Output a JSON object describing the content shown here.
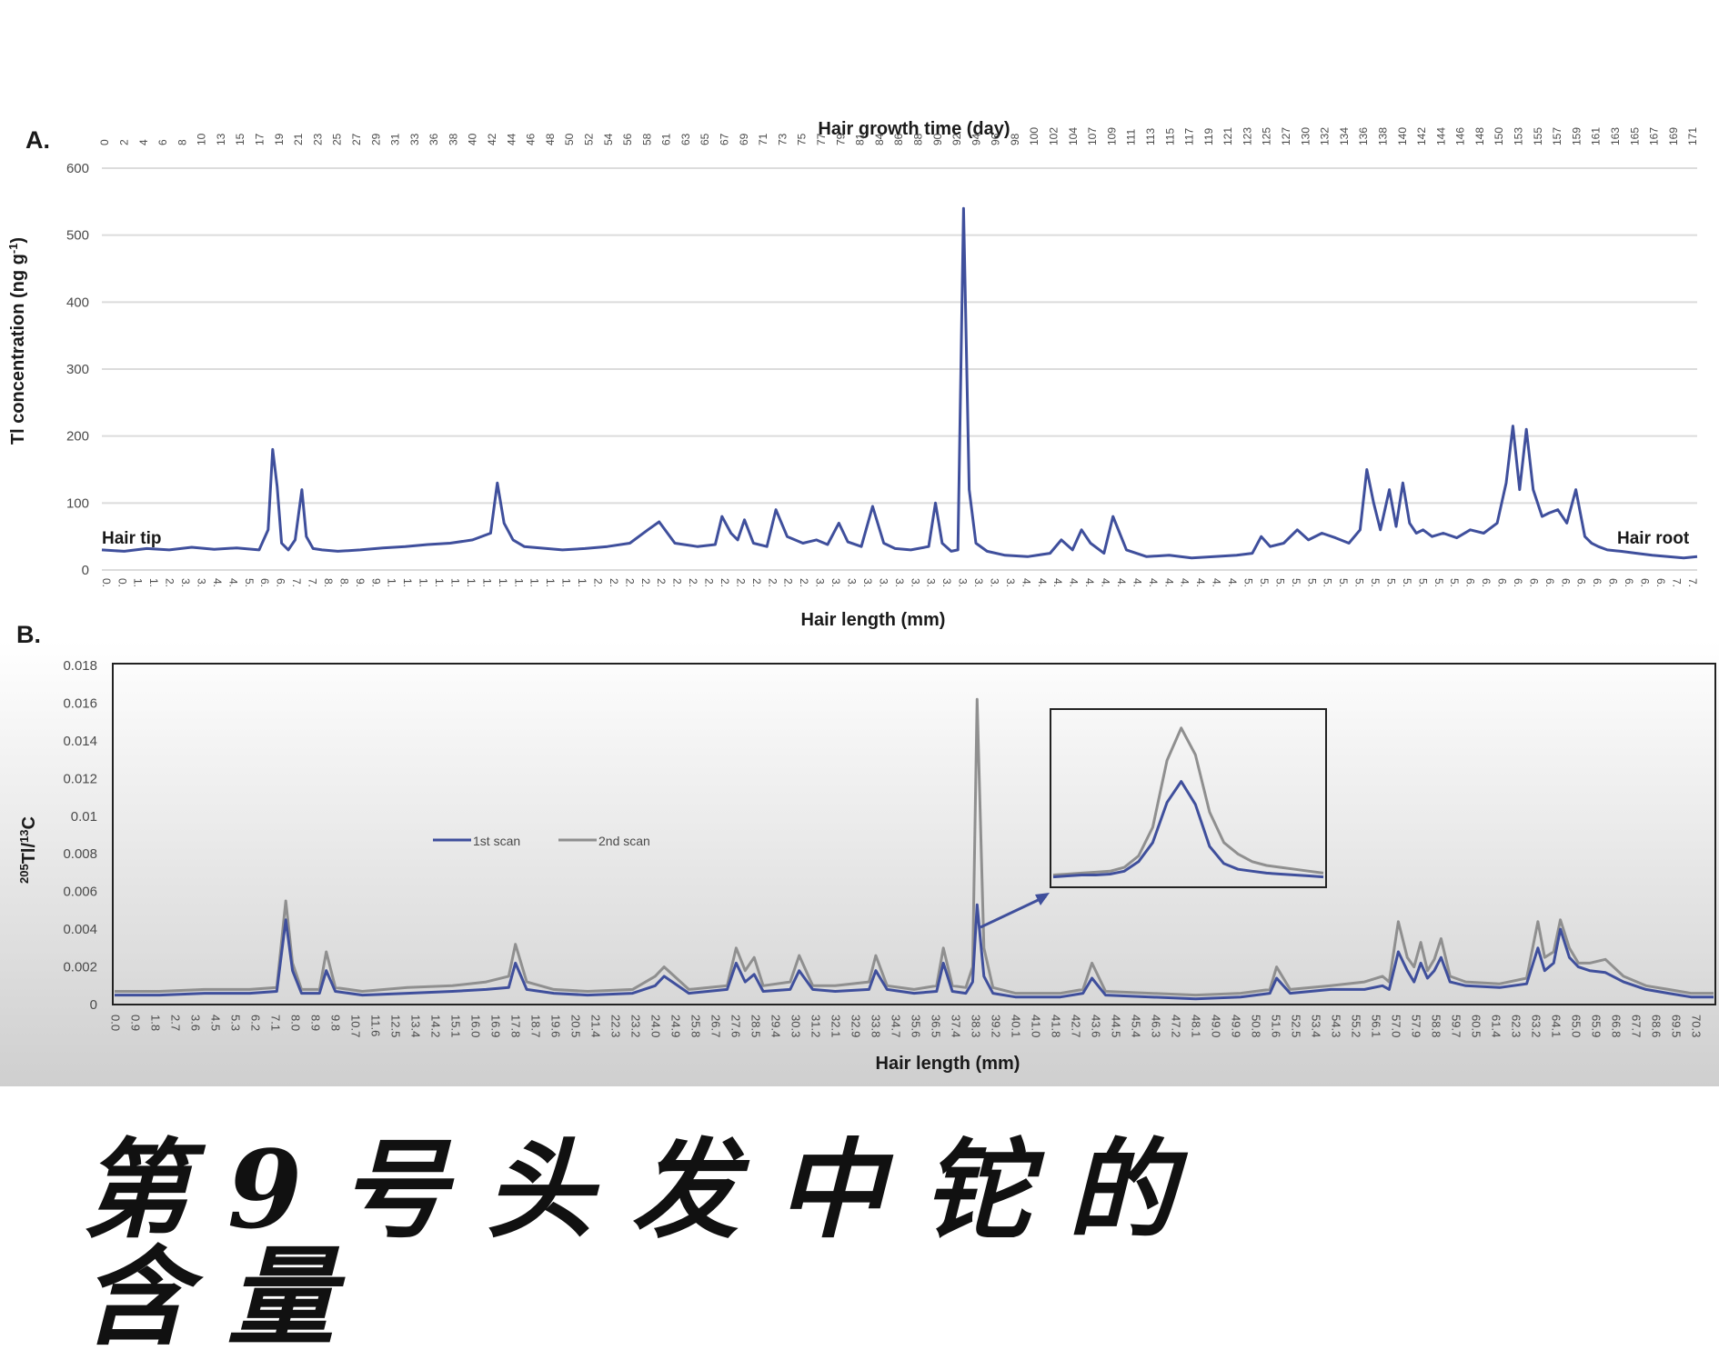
{
  "caption": "第9号头发中铊的含量",
  "panel_a": {
    "label": "A.",
    "top_axis_title": "Hair growth time (day)",
    "ylabel": "Tl concentration (ng g",
    "ylabel_sup": "-1",
    "ylabel_end": ")",
    "xlabel": "Hair length (mm)",
    "left_annotation": "Hair tip",
    "right_annotation": "Hair root"
  },
  "panel_b": {
    "label": "B.",
    "ylabel_sup1": "205",
    "ylabel_mid": "Tl/",
    "ylabel_sup2": "13",
    "ylabel_end": "C",
    "xlabel": "Hair length (mm)",
    "legend": [
      "1st scan",
      "2nd scan"
    ]
  },
  "colors": {
    "series_a": "#3f4f9c",
    "scan1": "#3f4f9c",
    "scan2": "#8f8f8f",
    "grid": "#dcdcdc",
    "panel_b_top": "#ffffff",
    "panel_b_bottom": "#cfcfcf"
  },
  "chart_data": [
    {
      "type": "line",
      "panel": "A",
      "title": "",
      "ylabel": "Tl concentration (ng g-1)",
      "xlabel": "Hair length (mm)",
      "x2label": "Hair growth time (day)",
      "ylim": [
        0,
        600
      ],
      "yticks": [
        0,
        100,
        200,
        300,
        400,
        500,
        600
      ],
      "grid": true,
      "top_ticks": [
        "0",
        "2",
        "4",
        "6",
        "8",
        "10",
        "13",
        "15",
        "17",
        "19",
        "21",
        "23",
        "25",
        "27",
        "29",
        "31",
        "33",
        "36",
        "38",
        "40",
        "42",
        "44",
        "46",
        "48",
        "50",
        "52",
        "54",
        "56",
        "58",
        "61",
        "63",
        "65",
        "67",
        "69",
        "71",
        "73",
        "75",
        "77",
        "79",
        "81",
        "84",
        "86",
        "88",
        "90",
        "92",
        "94",
        "96",
        "98",
        "100",
        "102",
        "104",
        "107",
        "109",
        "111",
        "113",
        "115",
        "117",
        "119",
        "121",
        "123",
        "125",
        "127",
        "130",
        "132",
        "134",
        "136",
        "138",
        "140",
        "142",
        "144",
        "146",
        "148",
        "150",
        "153",
        "155",
        "157",
        "159",
        "161",
        "163",
        "165",
        "167",
        "169",
        "171"
      ],
      "bottom_ticks": [
        "0",
        "0",
        "1",
        "1",
        "2",
        "3",
        "3",
        "4",
        "4",
        "5",
        "6",
        "6",
        "7",
        "7",
        "8",
        "8",
        "9",
        "9",
        "1",
        "1",
        "1",
        "1",
        "1",
        "1",
        "1",
        "1",
        "1",
        "1",
        "1",
        "1",
        "1",
        "2",
        "2",
        "2",
        "2",
        "2",
        "2",
        "2",
        "2",
        "2",
        "2",
        "2",
        "2",
        "2",
        "2",
        "3",
        "3",
        "3",
        "3",
        "3",
        "3",
        "3",
        "3",
        "3",
        "3",
        "3",
        "3",
        "3",
        "4",
        "4",
        "4",
        "4",
        "4",
        "4",
        "4",
        "4",
        "4",
        "4",
        "4",
        "4",
        "4",
        "4",
        "5",
        "5",
        "5",
        "5",
        "5",
        "5",
        "5",
        "5",
        "5",
        "5",
        "5",
        "5",
        "5",
        "5",
        "6",
        "6",
        "6",
        "6",
        "6",
        "6",
        "6",
        "6",
        "6",
        "6",
        "6",
        "6",
        "6",
        "7",
        "7"
      ],
      "series": [
        {
          "x": [
            0,
            1,
            2,
            3,
            4,
            5,
            6,
            7,
            7.4,
            7.6,
            7.8,
            8.0,
            8.3,
            8.6,
            8.9,
            9.1,
            9.4,
            9.8,
            10.5,
            11.5,
            12.5,
            13.5,
            14.5,
            15.5,
            16.5,
            17.3,
            17.6,
            17.9,
            18.3,
            18.8,
            19.5,
            20.5,
            21.5,
            22.5,
            23.5,
            24.3,
            24.8,
            25.5,
            26.5,
            27.3,
            27.6,
            28.0,
            28.3,
            28.6,
            29.0,
            29.6,
            30.0,
            30.5,
            31.2,
            31.8,
            32.3,
            32.8,
            33.2,
            33.8,
            34.3,
            34.8,
            35.3,
            36.0,
            36.8,
            37.1,
            37.4,
            37.8,
            38.1,
            38.35,
            38.6,
            38.9,
            39.4,
            40.2,
            41.2,
            42.2,
            42.7,
            43.2,
            43.6,
            44.0,
            44.6,
            45.0,
            45.6,
            46.5,
            47.5,
            48.5,
            49.5,
            50.5,
            51.2,
            51.6,
            52.0,
            52.6,
            53.2,
            53.7,
            54.3,
            54.9,
            55.5,
            56.0,
            56.3,
            56.6,
            56.9,
            57.3,
            57.6,
            57.9,
            58.2,
            58.5,
            58.8,
            59.2,
            59.7,
            60.3,
            60.9,
            61.5,
            62.1,
            62.5,
            62.8,
            63.1,
            63.4,
            63.7,
            64.1,
            64.4,
            64.8,
            65.2,
            65.6,
            66.0,
            66.3,
            66.6,
            67.0,
            67.6,
            68.3,
            69.0,
            69.7,
            70.4,
            71.0
          ],
          "values": [
            30,
            28,
            32,
            30,
            34,
            31,
            33,
            30,
            60,
            180,
            125,
            40,
            30,
            45,
            120,
            50,
            32,
            30,
            28,
            30,
            33,
            35,
            38,
            40,
            45,
            55,
            130,
            70,
            45,
            35,
            33,
            30,
            32,
            35,
            40,
            60,
            72,
            40,
            35,
            38,
            80,
            55,
            45,
            75,
            40,
            35,
            90,
            50,
            40,
            45,
            38,
            70,
            42,
            35,
            95,
            40,
            32,
            30,
            35,
            100,
            40,
            28,
            30,
            540,
            120,
            40,
            28,
            22,
            20,
            25,
            45,
            30,
            60,
            40,
            25,
            80,
            30,
            20,
            22,
            18,
            20,
            22,
            25,
            50,
            35,
            40,
            60,
            45,
            55,
            48,
            40,
            60,
            150,
            100,
            60,
            120,
            65,
            130,
            70,
            55,
            60,
            50,
            55,
            48,
            60,
            55,
            70,
            130,
            215,
            120,
            210,
            120,
            80,
            85,
            90,
            70,
            120,
            50,
            40,
            35,
            30,
            28,
            25,
            22,
            20,
            18,
            20
          ]
        }
      ]
    },
    {
      "type": "line",
      "panel": "B",
      "title": "",
      "ylabel": "205Tl/13C",
      "xlabel": "Hair length (mm)",
      "ylim": [
        0,
        0.018
      ],
      "yticks": [
        0,
        0.002,
        0.004,
        0.006,
        0.008,
        0.01,
        0.012,
        0.014,
        0.016,
        0.018
      ],
      "ytick_labels": [
        "0",
        "0.002",
        "0.004",
        "0.006",
        "0.008",
        "0.01",
        "0.012",
        "0.014",
        "0.016",
        "0.018"
      ],
      "grid": false,
      "legend": "center-left",
      "categories": [
        "0.0",
        "0.9",
        "1.8",
        "2.7",
        "3.6",
        "4.5",
        "5.3",
        "6.2",
        "7.1",
        "8.0",
        "8.9",
        "9.8",
        "10.7",
        "11.6",
        "12.5",
        "13.4",
        "14.2",
        "15.1",
        "16.0",
        "16.9",
        "17.8",
        "18.7",
        "19.6",
        "20.5",
        "21.4",
        "22.3",
        "23.2",
        "24.0",
        "24.9",
        "25.8",
        "26.7",
        "27.6",
        "28.5",
        "29.4",
        "30.3",
        "31.2",
        "32.1",
        "32.9",
        "33.8",
        "34.7",
        "35.6",
        "36.5",
        "37.4",
        "38.3",
        "39.2",
        "40.1",
        "41.0",
        "41.8",
        "42.7",
        "43.6",
        "44.5",
        "45.4",
        "46.3",
        "47.2",
        "48.1",
        "49.0",
        "49.9",
        "50.8",
        "51.6",
        "52.5",
        "53.4",
        "54.3",
        "55.2",
        "56.1",
        "57.0",
        "57.9",
        "58.8",
        "59.7",
        "60.5",
        "61.4",
        "62.3",
        "63.2",
        "64.1",
        "65.0",
        "65.9",
        "66.8",
        "67.7",
        "68.6",
        "69.5",
        "70.3"
      ],
      "series": [
        {
          "name": "1st scan",
          "x": [
            0,
            2,
            4,
            6,
            7.2,
            7.6,
            7.9,
            8.3,
            9.1,
            9.4,
            9.8,
            11,
            13,
            15,
            16.5,
            17.5,
            17.8,
            18.3,
            19.5,
            21,
            23,
            24.0,
            24.4,
            25.5,
            27.2,
            27.6,
            28.0,
            28.4,
            28.8,
            30.0,
            30.4,
            31.0,
            32,
            33.5,
            33.8,
            34.3,
            35.5,
            36.5,
            36.8,
            37.2,
            37.8,
            38.1,
            38.3,
            38.6,
            39.0,
            40,
            42,
            43.0,
            43.4,
            44,
            46,
            48,
            50,
            51.3,
            51.6,
            52.2,
            54,
            55.5,
            56.3,
            56.6,
            57.0,
            57.4,
            57.7,
            58.0,
            58.3,
            58.6,
            58.9,
            59.3,
            60,
            61.5,
            62.7,
            63.2,
            63.5,
            63.9,
            64.2,
            64.6,
            65.0,
            65.5,
            66.2,
            67.0,
            68,
            69,
            70,
            71
          ],
          "values": [
            0.0005,
            0.0005,
            0.0006,
            0.0006,
            0.0007,
            0.0045,
            0.0018,
            0.0006,
            0.0006,
            0.0018,
            0.0007,
            0.0005,
            0.0006,
            0.0007,
            0.0008,
            0.0009,
            0.0022,
            0.0008,
            0.0006,
            0.0005,
            0.0006,
            0.001,
            0.0015,
            0.0006,
            0.0008,
            0.0022,
            0.0012,
            0.0016,
            0.0007,
            0.0008,
            0.0018,
            0.0008,
            0.0007,
            0.0008,
            0.0018,
            0.0008,
            0.0006,
            0.0007,
            0.0022,
            0.0007,
            0.0006,
            0.0012,
            0.0053,
            0.0015,
            0.0006,
            0.0004,
            0.0004,
            0.0006,
            0.0014,
            0.0005,
            0.0004,
            0.0003,
            0.0004,
            0.0006,
            0.0014,
            0.0006,
            0.0008,
            0.0008,
            0.001,
            0.0008,
            0.0028,
            0.0018,
            0.0012,
            0.0022,
            0.0014,
            0.0018,
            0.0025,
            0.0012,
            0.001,
            0.0009,
            0.0011,
            0.003,
            0.0018,
            0.0022,
            0.004,
            0.0025,
            0.002,
            0.0018,
            0.0017,
            0.0012,
            0.0008,
            0.0006,
            0.0004,
            0.0004
          ]
        },
        {
          "name": "2nd scan",
          "x": [
            0,
            2,
            4,
            6,
            7.2,
            7.6,
            7.9,
            8.3,
            9.1,
            9.4,
            9.8,
            11,
            13,
            15,
            16.5,
            17.5,
            17.8,
            18.3,
            19.5,
            21,
            23,
            24.0,
            24.4,
            25.5,
            27.2,
            27.6,
            28.0,
            28.4,
            28.8,
            30.0,
            30.4,
            31.0,
            32,
            33.5,
            33.8,
            34.3,
            35.5,
            36.5,
            36.8,
            37.2,
            37.8,
            38.1,
            38.3,
            38.6,
            39.0,
            40,
            42,
            43.0,
            43.4,
            44,
            46,
            48,
            50,
            51.3,
            51.6,
            52.2,
            54,
            55.5,
            56.3,
            56.6,
            57.0,
            57.4,
            57.7,
            58.0,
            58.3,
            58.6,
            58.9,
            59.3,
            60,
            61.5,
            62.7,
            63.2,
            63.5,
            63.9,
            64.2,
            64.6,
            65.0,
            65.5,
            66.2,
            67.0,
            68,
            69,
            70,
            71
          ],
          "values": [
            0.0007,
            0.0007,
            0.0008,
            0.0008,
            0.0009,
            0.0055,
            0.0022,
            0.0008,
            0.0008,
            0.0028,
            0.0009,
            0.0007,
            0.0009,
            0.001,
            0.0012,
            0.0015,
            0.0032,
            0.0012,
            0.0008,
            0.0007,
            0.0008,
            0.0015,
            0.002,
            0.0008,
            0.001,
            0.003,
            0.0018,
            0.0025,
            0.001,
            0.0012,
            0.0026,
            0.001,
            0.001,
            0.0012,
            0.0026,
            0.001,
            0.0008,
            0.001,
            0.003,
            0.001,
            0.0009,
            0.002,
            0.0162,
            0.003,
            0.0009,
            0.0006,
            0.0006,
            0.0008,
            0.0022,
            0.0007,
            0.0006,
            0.0005,
            0.0006,
            0.0008,
            0.002,
            0.0008,
            0.001,
            0.0012,
            0.0015,
            0.0012,
            0.0044,
            0.0025,
            0.002,
            0.0033,
            0.0018,
            0.0024,
            0.0035,
            0.0015,
            0.0012,
            0.0011,
            0.0014,
            0.0044,
            0.0025,
            0.0028,
            0.0045,
            0.003,
            0.0022,
            0.0022,
            0.0024,
            0.0015,
            0.001,
            0.0008,
            0.0006,
            0.0006
          ]
        }
      ],
      "inset": {
        "note": "zoomed view of the peak at ~38.3 mm",
        "series": [
          {
            "name": "1st scan",
            "values": [
              0.4,
              0.45,
              0.5,
              0.5,
              0.55,
              0.7,
              1.2,
              2.2,
              4.3,
              5.4,
              4.2,
              2.0,
              1.1,
              0.8,
              0.7,
              0.6,
              0.55,
              0.5,
              0.45,
              0.4
            ]
          },
          {
            "name": "2nd scan",
            "values": [
              0.5,
              0.55,
              0.6,
              0.65,
              0.7,
              0.9,
              1.5,
              3.0,
              6.5,
              8.2,
              6.8,
              3.8,
              2.2,
              1.6,
              1.2,
              1.0,
              0.9,
              0.8,
              0.7,
              0.6
            ]
          }
        ]
      }
    }
  ]
}
